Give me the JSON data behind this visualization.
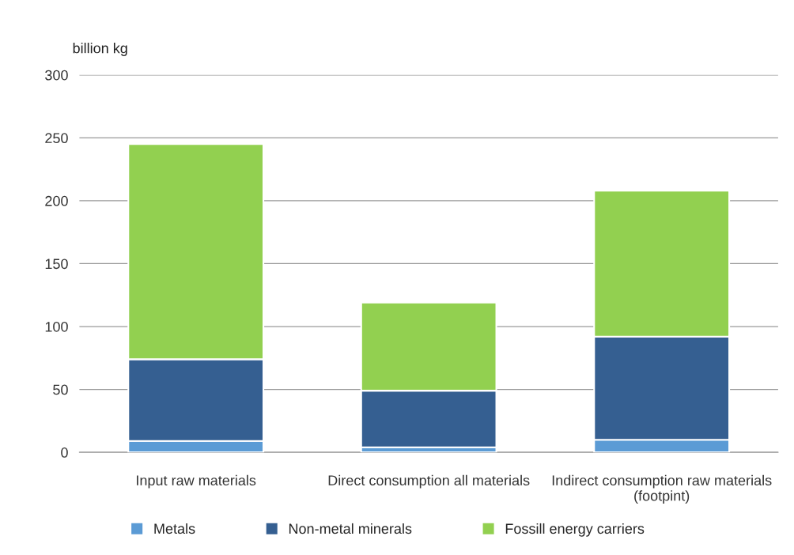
{
  "chart_data": {
    "type": "bar",
    "stacked": true,
    "ylabel": "billion kg",
    "categories": [
      "Input raw materials",
      "Direct consumption all materials",
      "Indirect consumption raw materials (footpint)"
    ],
    "series": [
      {
        "name": "Metals",
        "color": "#5b9bd5",
        "values": [
          9,
          4,
          10
        ]
      },
      {
        "name": "Non-metal minerals",
        "color": "#355f91",
        "values": [
          65,
          45,
          82
        ]
      },
      {
        "name": "Fossill energy carriers",
        "color": "#92d050",
        "values": [
          171,
          70,
          116
        ]
      }
    ],
    "ylim": [
      0,
      300
    ],
    "yticks": [
      0,
      50,
      100,
      150,
      200,
      250,
      300
    ],
    "grid": "y",
    "legend": "bottom"
  }
}
